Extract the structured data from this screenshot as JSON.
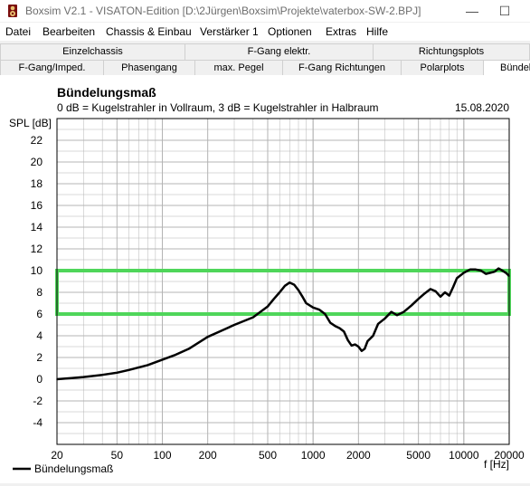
{
  "window": {
    "title": "Boxsim V2.1 - VISATON-Edition [D:\\2Jürgen\\Boxsim\\Projekte\\vaterbox-SW-2.BPJ]",
    "minimize_glyph": "—",
    "maximize_glyph": "☐"
  },
  "menu": [
    "Datei",
    "Bearbeiten",
    "Chassis & Einbau",
    "Verstärker 1",
    "Optionen",
    "Extras",
    "Hilfe"
  ],
  "tabs_row1": [
    "Einzelchassis",
    "F-Gang elektr.",
    "Richtungsplots"
  ],
  "tabs_row2": [
    "F-Gang/Imped.",
    "Phasengang",
    "max. Pegel",
    "F-Gang Richtungen",
    "Polarplots",
    "Bündel"
  ],
  "active_tab": "Bündel",
  "colors": {
    "curve": "#000000",
    "highlight_band": "#4fd65a",
    "grid": "#b4b4b4",
    "chart_bg": "#ffffff"
  },
  "chart_data": {
    "type": "line",
    "title": "Bündelungsmaß",
    "subtitle": "0 dB = Kugelstrahler in Vollraum, 3 dB = Kugelstrahler in Halbraum",
    "date": "15.08.2020",
    "ylabel": "SPL [dB]",
    "xlabel": "f [Hz]",
    "x_scale": "log",
    "xlim": [
      20,
      20000
    ],
    "ylim": [
      -6,
      24
    ],
    "grid": true,
    "yticks": [
      22,
      20,
      18,
      16,
      14,
      12,
      10,
      8,
      6,
      4,
      2,
      0,
      -2,
      -4
    ],
    "xticks": [
      {
        "value": 20,
        "label": "20"
      },
      {
        "value": 50,
        "label": "50"
      },
      {
        "value": 100,
        "label": "100"
      },
      {
        "value": 200,
        "label": "200"
      },
      {
        "value": 500,
        "label": "500"
      },
      {
        "value": 1000,
        "label": "1000"
      },
      {
        "value": 2000,
        "label": "2000"
      },
      {
        "value": 5000,
        "label": "5000"
      },
      {
        "value": 10000,
        "label": "10000"
      },
      {
        "value": 20000,
        "label": "20000"
      }
    ],
    "highlight_band": {
      "x": [
        20,
        20000
      ],
      "y": [
        6,
        10
      ]
    },
    "legend": {
      "position": "bottom-left",
      "entries": [
        "Bündelungsmaß"
      ]
    },
    "series": [
      {
        "name": "Bündelungsmaß",
        "points": [
          [
            20,
            0.0
          ],
          [
            25,
            0.1
          ],
          [
            30,
            0.2
          ],
          [
            40,
            0.4
          ],
          [
            50,
            0.6
          ],
          [
            60,
            0.85
          ],
          [
            80,
            1.3
          ],
          [
            100,
            1.8
          ],
          [
            120,
            2.2
          ],
          [
            150,
            2.8
          ],
          [
            200,
            3.9
          ],
          [
            250,
            4.5
          ],
          [
            300,
            5.0
          ],
          [
            400,
            5.7
          ],
          [
            500,
            6.7
          ],
          [
            550,
            7.4
          ],
          [
            600,
            8.0
          ],
          [
            650,
            8.6
          ],
          [
            700,
            8.9
          ],
          [
            750,
            8.7
          ],
          [
            800,
            8.2
          ],
          [
            850,
            7.6
          ],
          [
            900,
            7.0
          ],
          [
            1000,
            6.6
          ],
          [
            1100,
            6.4
          ],
          [
            1200,
            6.0
          ],
          [
            1300,
            5.2
          ],
          [
            1400,
            4.9
          ],
          [
            1500,
            4.7
          ],
          [
            1600,
            4.4
          ],
          [
            1700,
            3.6
          ],
          [
            1800,
            3.1
          ],
          [
            1900,
            3.2
          ],
          [
            2000,
            3.0
          ],
          [
            2100,
            2.6
          ],
          [
            2200,
            2.8
          ],
          [
            2300,
            3.5
          ],
          [
            2500,
            4.0
          ],
          [
            2700,
            5.1
          ],
          [
            3000,
            5.6
          ],
          [
            3300,
            6.2
          ],
          [
            3600,
            5.9
          ],
          [
            4000,
            6.2
          ],
          [
            4500,
            6.8
          ],
          [
            5000,
            7.4
          ],
          [
            5500,
            7.9
          ],
          [
            6000,
            8.3
          ],
          [
            6500,
            8.1
          ],
          [
            7000,
            7.6
          ],
          [
            7500,
            8.0
          ],
          [
            8000,
            7.7
          ],
          [
            8500,
            8.5
          ],
          [
            9000,
            9.3
          ],
          [
            10000,
            9.8
          ],
          [
            11000,
            10.1
          ],
          [
            12000,
            10.1
          ],
          [
            13000,
            10.0
          ],
          [
            14000,
            9.7
          ],
          [
            15000,
            9.8
          ],
          [
            16000,
            9.9
          ],
          [
            17000,
            10.2
          ],
          [
            18000,
            10.0
          ],
          [
            19000,
            9.8
          ],
          [
            20000,
            9.5
          ]
        ]
      }
    ]
  }
}
